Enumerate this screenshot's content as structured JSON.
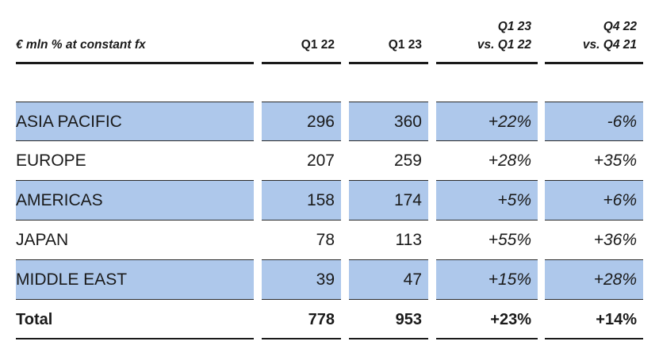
{
  "header": {
    "label": "€ mln % at constant fx",
    "q1_22": "Q1 22",
    "q1_23": "Q1 23",
    "yoy_line1": "Q1 23",
    "yoy_line2": "vs. Q1 22",
    "q4_line1": "Q4 22",
    "q4_line2": "vs. Q4 21"
  },
  "rows": [
    {
      "region": "ASIA PACIFIC",
      "q1_22": "296",
      "q1_23": "360",
      "yoy": "+22%",
      "q4": "-6%"
    },
    {
      "region": "EUROPE",
      "q1_22": "207",
      "q1_23": "259",
      "yoy": "+28%",
      "q4": "+35%"
    },
    {
      "region": "AMERICAS",
      "q1_22": "158",
      "q1_23": "174",
      "yoy": "+5%",
      "q4": "+6%"
    },
    {
      "region": "JAPAN",
      "q1_22": "78",
      "q1_23": "113",
      "yoy": "+55%",
      "q4": "+36%"
    },
    {
      "region": "MIDDLE EAST",
      "q1_22": "39",
      "q1_23": "47",
      "yoy": "+15%",
      "q4": "+28%"
    }
  ],
  "total": {
    "label": "Total",
    "q1_22": "778",
    "q1_23": "953",
    "yoy": "+23%",
    "q4": "+14%"
  },
  "colors": {
    "highlight": "#aec8eb",
    "text": "#1a1a1a"
  }
}
